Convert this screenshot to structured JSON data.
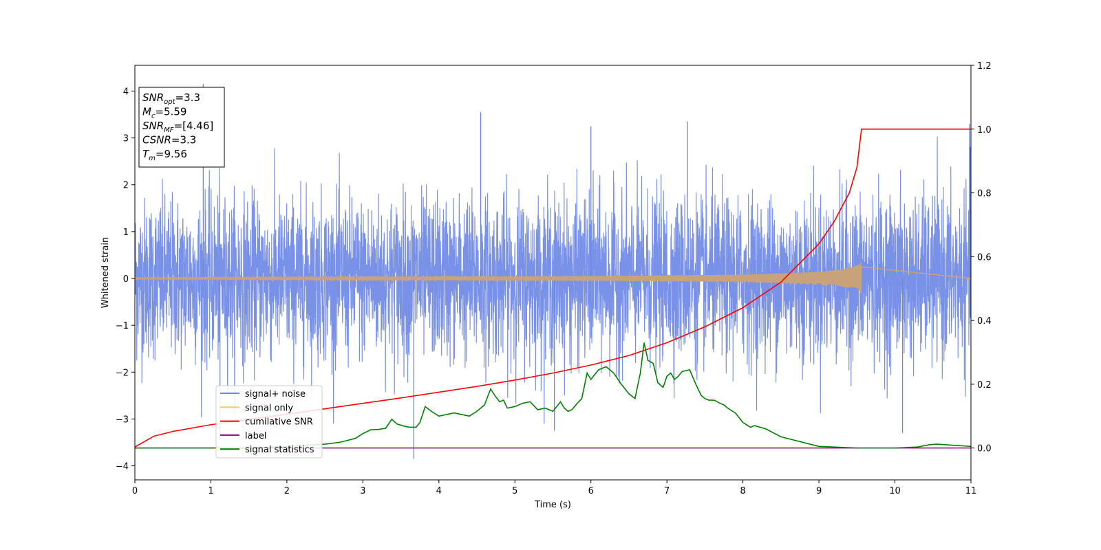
{
  "chart_data": {
    "type": "line",
    "xlabel": "Time (s)",
    "ylabel": "Whitened strain",
    "xlim": [
      0,
      11
    ],
    "ylim": [
      -4.3,
      4.55
    ],
    "y2lim": [
      -0.1,
      1.2
    ],
    "xticks": [
      "0",
      "1",
      "2",
      "3",
      "4",
      "5",
      "6",
      "7",
      "8",
      "9",
      "10",
      "11"
    ],
    "yticks": [
      "4",
      "3",
      "2",
      "1",
      "0",
      "−1",
      "−2",
      "−3",
      "−4"
    ],
    "y2ticks": [
      "1.2",
      "1.0",
      "0.8",
      "0.6",
      "0.4",
      "0.2",
      "0.0"
    ],
    "grid": false,
    "legend_position": "lower-left",
    "colors": {
      "signal_noise": "#6a86e6",
      "signal_only": "#c7a27a",
      "cumulative_snr": "#ff0000",
      "label": "#800080",
      "signal_statistics": "#008000"
    },
    "annotation": {
      "lines": [
        {
          "base": "SNR",
          "sub": "opt",
          "value": "=3.3"
        },
        {
          "base": "M",
          "sub": "c",
          "value": "=5.59"
        },
        {
          "base": "SNR",
          "sub": "MF",
          "value": "=[4.46]"
        },
        {
          "base": "CSNR",
          "sub": "",
          "value": "=3.3"
        },
        {
          "base": "T",
          "sub": "m",
          "value": "=9.56"
        }
      ]
    },
    "series": [
      {
        "name": "signal+ noise",
        "axis": "left",
        "kind": "noise",
        "amplitude_std": 0.85,
        "t_start": 0,
        "t_end": 11,
        "spikes": [
          [
            0.9,
            4.15
          ],
          [
            4.55,
            3.55
          ],
          [
            6.0,
            3.25
          ],
          [
            7.27,
            3.35
          ],
          [
            10.98,
            3.3
          ],
          [
            3.67,
            -3.85
          ],
          [
            1.12,
            -3.45
          ],
          [
            5.52,
            -3.25
          ],
          [
            10.1,
            -3.3
          ]
        ]
      },
      {
        "name": "signal only",
        "axis": "left",
        "kind": "chirp",
        "t_end": 9.56,
        "envelope": [
          [
            0,
            0.02
          ],
          [
            6,
            0.05
          ],
          [
            8,
            0.08
          ],
          [
            9,
            0.14
          ],
          [
            9.3,
            0.19
          ],
          [
            9.5,
            0.27
          ],
          [
            9.56,
            0.35
          ]
        ]
      },
      {
        "name": "cumilative SNR",
        "axis": "right",
        "x": [
          0,
          0.25,
          0.5,
          1,
          1.5,
          2,
          2.5,
          3,
          3.5,
          4,
          4.5,
          5,
          5.5,
          6,
          6.5,
          7,
          7.5,
          8,
          8.5,
          9,
          9.2,
          9.4,
          9.5,
          9.56,
          11
        ],
        "y": [
          0.003,
          0.037,
          0.052,
          0.073,
          0.09,
          0.106,
          0.123,
          0.14,
          0.157,
          0.175,
          0.193,
          0.213,
          0.235,
          0.26,
          0.29,
          0.33,
          0.38,
          0.44,
          0.52,
          0.64,
          0.71,
          0.8,
          0.88,
          1.0,
          1.0
        ]
      },
      {
        "name": "label",
        "axis": "right",
        "x": [
          0,
          11
        ],
        "y": [
          0,
          0
        ]
      },
      {
        "name": "signal statistics",
        "axis": "right",
        "x": [
          0,
          0.5,
          1,
          1.5,
          2,
          2.2,
          2.5,
          2.7,
          2.9,
          3.0,
          3.1,
          3.2,
          3.3,
          3.38,
          3.45,
          3.55,
          3.62,
          3.7,
          3.75,
          3.82,
          3.9,
          4.0,
          4.1,
          4.2,
          4.3,
          4.4,
          4.5,
          4.6,
          4.68,
          4.75,
          4.8,
          4.85,
          4.9,
          5.0,
          5.1,
          5.2,
          5.3,
          5.4,
          5.5,
          5.55,
          5.6,
          5.65,
          5.7,
          5.75,
          5.82,
          5.88,
          5.95,
          6.0,
          6.1,
          6.2,
          6.25,
          6.3,
          6.4,
          6.5,
          6.58,
          6.65,
          6.7,
          6.75,
          6.82,
          6.88,
          6.95,
          7.0,
          7.05,
          7.1,
          7.15,
          7.2,
          7.3,
          7.38,
          7.45,
          7.5,
          7.55,
          7.62,
          7.7,
          7.75,
          7.8,
          7.9,
          8.0,
          8.1,
          8.15,
          8.3,
          8.5,
          9.0,
          9.5,
          10.0,
          10.3,
          10.45,
          10.55,
          11
        ],
        "y": [
          0.0,
          0.0,
          0.0,
          0.0,
          0.005,
          0.008,
          0.012,
          0.018,
          0.03,
          0.045,
          0.057,
          0.058,
          0.062,
          0.09,
          0.075,
          0.068,
          0.065,
          0.065,
          0.08,
          0.13,
          0.115,
          0.1,
          0.105,
          0.11,
          0.105,
          0.1,
          0.115,
          0.135,
          0.185,
          0.16,
          0.145,
          0.15,
          0.125,
          0.13,
          0.14,
          0.145,
          0.12,
          0.125,
          0.115,
          0.13,
          0.145,
          0.125,
          0.115,
          0.12,
          0.14,
          0.155,
          0.235,
          0.215,
          0.245,
          0.255,
          0.245,
          0.235,
          0.2,
          0.17,
          0.155,
          0.235,
          0.33,
          0.275,
          0.265,
          0.205,
          0.19,
          0.225,
          0.235,
          0.215,
          0.225,
          0.24,
          0.245,
          0.2,
          0.165,
          0.155,
          0.15,
          0.15,
          0.14,
          0.135,
          0.125,
          0.11,
          0.08,
          0.065,
          0.07,
          0.06,
          0.035,
          0.005,
          0.0,
          0.0,
          0.003,
          0.01,
          0.012,
          0.005
        ]
      }
    ]
  }
}
